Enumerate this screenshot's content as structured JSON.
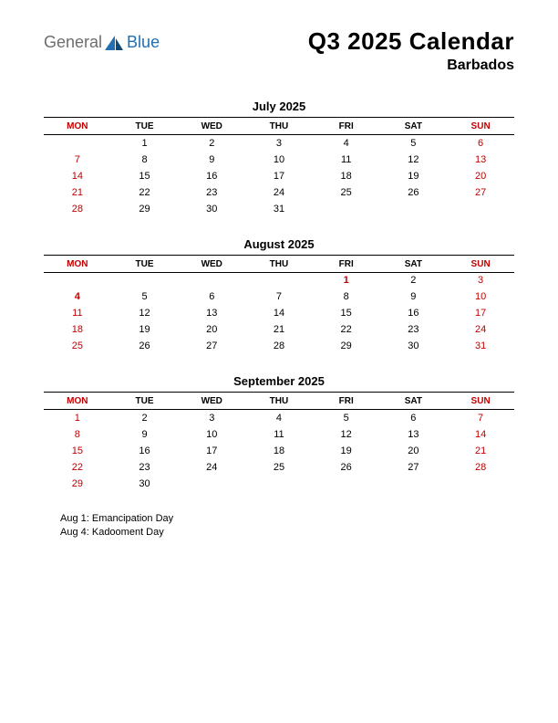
{
  "logo": {
    "text1": "General",
    "text2": "Blue"
  },
  "title": "Q3 2025 Calendar",
  "subtitle": "Barbados",
  "colors": {
    "red": "#c00000",
    "black": "#000000",
    "logo_grey": "#6d6d6d",
    "logo_blue": "#1f6fb2"
  },
  "day_headers": [
    "MON",
    "TUE",
    "WED",
    "THU",
    "FRI",
    "SAT",
    "SUN"
  ],
  "months": [
    {
      "title": "July 2025",
      "weeks": [
        [
          {
            "d": ""
          },
          {
            "d": "1"
          },
          {
            "d": "2"
          },
          {
            "d": "3"
          },
          {
            "d": "4"
          },
          {
            "d": "5"
          },
          {
            "d": "6",
            "r": 1
          }
        ],
        [
          {
            "d": "7",
            "r": 1
          },
          {
            "d": "8"
          },
          {
            "d": "9"
          },
          {
            "d": "10"
          },
          {
            "d": "11"
          },
          {
            "d": "12"
          },
          {
            "d": "13",
            "r": 1
          }
        ],
        [
          {
            "d": "14",
            "r": 1
          },
          {
            "d": "15"
          },
          {
            "d": "16"
          },
          {
            "d": "17"
          },
          {
            "d": "18"
          },
          {
            "d": "19"
          },
          {
            "d": "20",
            "r": 1
          }
        ],
        [
          {
            "d": "21",
            "r": 1
          },
          {
            "d": "22"
          },
          {
            "d": "23"
          },
          {
            "d": "24"
          },
          {
            "d": "25"
          },
          {
            "d": "26"
          },
          {
            "d": "27",
            "r": 1
          }
        ],
        [
          {
            "d": "28",
            "r": 1
          },
          {
            "d": "29"
          },
          {
            "d": "30"
          },
          {
            "d": "31"
          },
          {
            "d": ""
          },
          {
            "d": ""
          },
          {
            "d": ""
          }
        ]
      ]
    },
    {
      "title": "August 2025",
      "weeks": [
        [
          {
            "d": ""
          },
          {
            "d": ""
          },
          {
            "d": ""
          },
          {
            "d": ""
          },
          {
            "d": "1",
            "r": 1,
            "b": 1
          },
          {
            "d": "2"
          },
          {
            "d": "3",
            "r": 1
          }
        ],
        [
          {
            "d": "4",
            "r": 1,
            "b": 1
          },
          {
            "d": "5"
          },
          {
            "d": "6"
          },
          {
            "d": "7"
          },
          {
            "d": "8"
          },
          {
            "d": "9"
          },
          {
            "d": "10",
            "r": 1
          }
        ],
        [
          {
            "d": "11",
            "r": 1
          },
          {
            "d": "12"
          },
          {
            "d": "13"
          },
          {
            "d": "14"
          },
          {
            "d": "15"
          },
          {
            "d": "16"
          },
          {
            "d": "17",
            "r": 1
          }
        ],
        [
          {
            "d": "18",
            "r": 1
          },
          {
            "d": "19"
          },
          {
            "d": "20"
          },
          {
            "d": "21"
          },
          {
            "d": "22"
          },
          {
            "d": "23"
          },
          {
            "d": "24",
            "r": 1
          }
        ],
        [
          {
            "d": "25",
            "r": 1
          },
          {
            "d": "26"
          },
          {
            "d": "27"
          },
          {
            "d": "28"
          },
          {
            "d": "29"
          },
          {
            "d": "30"
          },
          {
            "d": "31",
            "r": 1
          }
        ]
      ]
    },
    {
      "title": "September 2025",
      "weeks": [
        [
          {
            "d": "1",
            "r": 1
          },
          {
            "d": "2"
          },
          {
            "d": "3"
          },
          {
            "d": "4"
          },
          {
            "d": "5"
          },
          {
            "d": "6"
          },
          {
            "d": "7",
            "r": 1
          }
        ],
        [
          {
            "d": "8",
            "r": 1
          },
          {
            "d": "9"
          },
          {
            "d": "10"
          },
          {
            "d": "11"
          },
          {
            "d": "12"
          },
          {
            "d": "13"
          },
          {
            "d": "14",
            "r": 1
          }
        ],
        [
          {
            "d": "15",
            "r": 1
          },
          {
            "d": "16"
          },
          {
            "d": "17"
          },
          {
            "d": "18"
          },
          {
            "d": "19"
          },
          {
            "d": "20"
          },
          {
            "d": "21",
            "r": 1
          }
        ],
        [
          {
            "d": "22",
            "r": 1
          },
          {
            "d": "23"
          },
          {
            "d": "24"
          },
          {
            "d": "25"
          },
          {
            "d": "26"
          },
          {
            "d": "27"
          },
          {
            "d": "28",
            "r": 1
          }
        ],
        [
          {
            "d": "29",
            "r": 1
          },
          {
            "d": "30"
          },
          {
            "d": ""
          },
          {
            "d": ""
          },
          {
            "d": ""
          },
          {
            "d": ""
          },
          {
            "d": ""
          }
        ]
      ]
    }
  ],
  "holidays": [
    "Aug 1: Emancipation Day",
    "Aug 4: Kadooment Day"
  ]
}
